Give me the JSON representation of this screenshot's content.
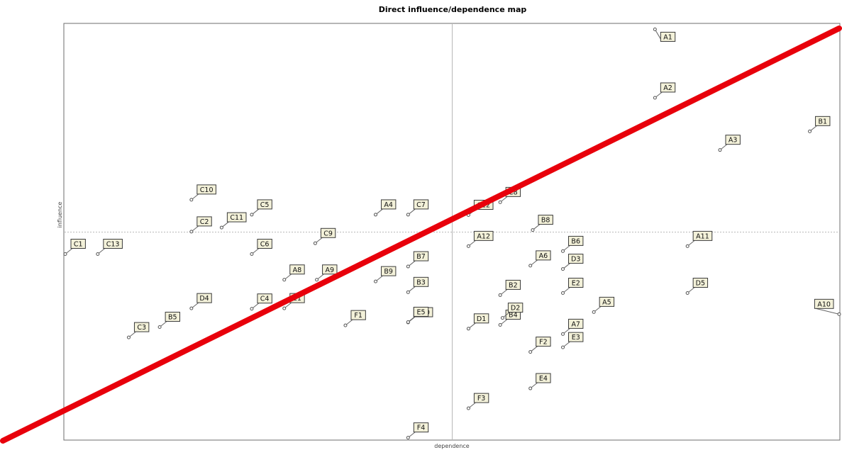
{
  "chart_data": {
    "type": "scatter",
    "title": "Direct influence/dependence map",
    "xlabel": "dependence",
    "ylabel": "influence",
    "xlim": [
      0,
      100
    ],
    "ylim": [
      0,
      100
    ],
    "midlines": {
      "x": 50,
      "y": 50
    },
    "colors": {
      "frame": "#6e6e6e",
      "midline": "#b8b8b8",
      "point": "#555555",
      "leader": "#666666",
      "label_fill": "#f3f1d9",
      "label_border": "#3a3a3a",
      "trend_line": "#e8000b"
    },
    "points": [
      {
        "label": "A1",
        "x": 76.2,
        "y": 98.9
      },
      {
        "label": "A2",
        "x": 76.2,
        "y": 82.4
      },
      {
        "label": "A3",
        "x": 84.6,
        "y": 69.8
      },
      {
        "label": "A4",
        "x": 40.1,
        "y": 54.2
      },
      {
        "label": "A5",
        "x": 68.3,
        "y": 30.7
      },
      {
        "label": "A6",
        "x": 60.1,
        "y": 41.9
      },
      {
        "label": "A7",
        "x": 64.3,
        "y": 25.4
      },
      {
        "label": "A8",
        "x": 28.3,
        "y": 38.5
      },
      {
        "label": "A9",
        "x": 32.5,
        "y": 38.5
      },
      {
        "label": "A10",
        "x": 100.0,
        "y": 30.2
      },
      {
        "label": "A11",
        "x": 80.4,
        "y": 46.6
      },
      {
        "label": "A12",
        "x": 52.1,
        "y": 46.6
      },
      {
        "label": "B1",
        "x": 96.2,
        "y": 74.3
      },
      {
        "label": "B2",
        "x": 56.2,
        "y": 34.8
      },
      {
        "label": "B3",
        "x": 44.3,
        "y": 35.5
      },
      {
        "label": "B4",
        "x": 56.2,
        "y": 27.6
      },
      {
        "label": "B5",
        "x": 12.2,
        "y": 27.1
      },
      {
        "label": "B6",
        "x": 64.3,
        "y": 45.4
      },
      {
        "label": "B7",
        "x": 44.3,
        "y": 41.7
      },
      {
        "label": "B8",
        "x": 60.4,
        "y": 50.5
      },
      {
        "label": "B9",
        "x": 40.1,
        "y": 38.1
      },
      {
        "label": "B10",
        "x": 44.3,
        "y": 28.2
      },
      {
        "label": "C1",
        "x": 0.0,
        "y": 44.7
      },
      {
        "label": "C2",
        "x": 16.3,
        "y": 50.1
      },
      {
        "label": "C3",
        "x": 8.2,
        "y": 24.6
      },
      {
        "label": "C4",
        "x": 24.1,
        "y": 31.5
      },
      {
        "label": "C5",
        "x": 24.1,
        "y": 54.2
      },
      {
        "label": "C6",
        "x": 24.1,
        "y": 44.7
      },
      {
        "label": "C7",
        "x": 44.3,
        "y": 54.2
      },
      {
        "label": "C8",
        "x": 56.2,
        "y": 57.2
      },
      {
        "label": "C9",
        "x": 32.3,
        "y": 47.3
      },
      {
        "label": "C10",
        "x": 16.3,
        "y": 57.8
      },
      {
        "label": "C11",
        "x": 20.2,
        "y": 51.1
      },
      {
        "label": "C12",
        "x": 52.1,
        "y": 54.1
      },
      {
        "label": "C13",
        "x": 4.2,
        "y": 44.7
      },
      {
        "label": "D1",
        "x": 52.1,
        "y": 26.7
      },
      {
        "label": "D2",
        "x": 56.5,
        "y": 29.3
      },
      {
        "label": "D3",
        "x": 64.3,
        "y": 41.1
      },
      {
        "label": "D4",
        "x": 16.3,
        "y": 31.6
      },
      {
        "label": "D5",
        "x": 80.4,
        "y": 35.3
      },
      {
        "label": "E1",
        "x": 28.3,
        "y": 31.6
      },
      {
        "label": "E2",
        "x": 64.3,
        "y": 35.3
      },
      {
        "label": "E3",
        "x": 64.3,
        "y": 22.2
      },
      {
        "label": "E4",
        "x": 60.1,
        "y": 12.3
      },
      {
        "label": "E5",
        "x": 44.3,
        "y": 28.3
      },
      {
        "label": "F1",
        "x": 36.2,
        "y": 27.5
      },
      {
        "label": "F2",
        "x": 60.1,
        "y": 21.1
      },
      {
        "label": "F3",
        "x": 52.1,
        "y": 7.5
      },
      {
        "label": "F4",
        "x": 44.3,
        "y": 0.4
      }
    ]
  }
}
